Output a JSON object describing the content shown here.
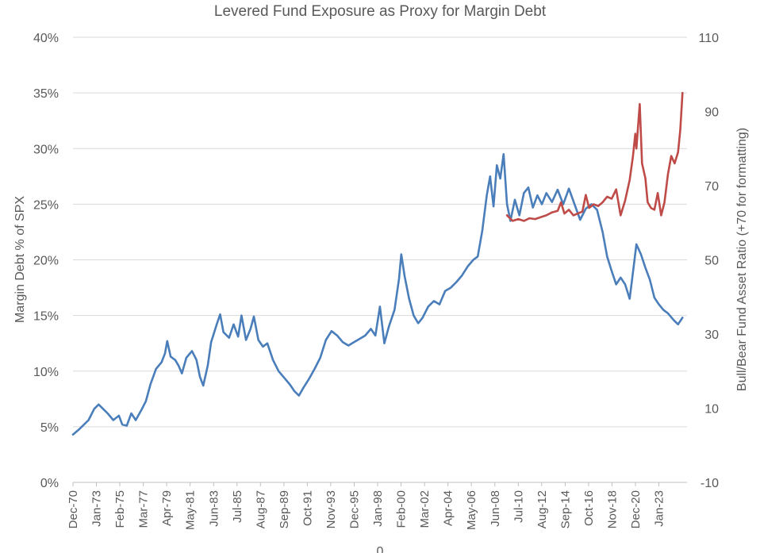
{
  "chart_data": {
    "type": "line",
    "title": "Levered Fund Exposure as Proxy for Margin Debt",
    "xlabel": "0",
    "ylabel": "Margin Debt % of SPX",
    "y2label": "Bull/Bear Fund Asset Ratio (+70 for formatting)",
    "ylim": [
      0,
      40
    ],
    "y2lim": [
      -10,
      110
    ],
    "yticks": [
      "0%",
      "5%",
      "10%",
      "15%",
      "20%",
      "25%",
      "30%",
      "35%",
      "40%"
    ],
    "y2ticks": [
      "-10",
      "10",
      "30",
      "50",
      "70",
      "90",
      "110"
    ],
    "xlim": [
      1970.92,
      2025.5
    ],
    "xticks": [
      {
        "label": "Dec-70",
        "year": 1970.92
      },
      {
        "label": "Jan-73",
        "year": 1973.0
      },
      {
        "label": "Feb-75",
        "year": 1975.08
      },
      {
        "label": "Mar-77",
        "year": 1977.17
      },
      {
        "label": "Apr-79",
        "year": 1979.25
      },
      {
        "label": "May-81",
        "year": 1981.33
      },
      {
        "label": "Jun-83",
        "year": 1983.42
      },
      {
        "label": "Jul-85",
        "year": 1985.5
      },
      {
        "label": "Aug-87",
        "year": 1987.58
      },
      {
        "label": "Sep-89",
        "year": 1989.67
      },
      {
        "label": "Oct-91",
        "year": 1991.75
      },
      {
        "label": "Nov-93",
        "year": 1993.83
      },
      {
        "label": "Dec-95",
        "year": 1995.92
      },
      {
        "label": "Jan-98",
        "year": 1998.0
      },
      {
        "label": "Feb-00",
        "year": 2000.08
      },
      {
        "label": "Mar-02",
        "year": 2002.17
      },
      {
        "label": "Apr-04",
        "year": 2004.25
      },
      {
        "label": "May-06",
        "year": 2006.33
      },
      {
        "label": "Jun-08",
        "year": 2008.42
      },
      {
        "label": "Jul-10",
        "year": 2010.5
      },
      {
        "label": "Aug-12",
        "year": 2012.58
      },
      {
        "label": "Sep-14",
        "year": 2014.67
      },
      {
        "label": "Oct-16",
        "year": 2016.75
      },
      {
        "label": "Nov-18",
        "year": 2018.83
      },
      {
        "label": "Dec-20",
        "year": 2020.92
      },
      {
        "label": "Jan-23",
        "year": 2023.0
      }
    ],
    "grid": true,
    "colors": {
      "margin": "#4a7ebb",
      "bullbear": "#be4b48",
      "grid": "#d9d9d9",
      "text": "#595959"
    },
    "series": [
      {
        "name": "Margin Debt % of SPX",
        "axis": "left",
        "color": "#4a7ebb",
        "points": [
          [
            1970.92,
            4.3
          ],
          [
            1971.5,
            4.8
          ],
          [
            1972.3,
            5.6
          ],
          [
            1972.8,
            6.6
          ],
          [
            1973.2,
            7.0
          ],
          [
            1973.6,
            6.6
          ],
          [
            1974.0,
            6.2
          ],
          [
            1974.5,
            5.6
          ],
          [
            1975.0,
            6.0
          ],
          [
            1975.3,
            5.2
          ],
          [
            1975.7,
            5.1
          ],
          [
            1976.1,
            6.2
          ],
          [
            1976.5,
            5.6
          ],
          [
            1977.0,
            6.5
          ],
          [
            1977.4,
            7.3
          ],
          [
            1977.8,
            8.8
          ],
          [
            1978.3,
            10.2
          ],
          [
            1978.8,
            10.8
          ],
          [
            1979.1,
            11.6
          ],
          [
            1979.3,
            12.7
          ],
          [
            1979.6,
            11.3
          ],
          [
            1980.0,
            11.0
          ],
          [
            1980.3,
            10.5
          ],
          [
            1980.6,
            9.8
          ],
          [
            1981.0,
            11.2
          ],
          [
            1981.5,
            11.8
          ],
          [
            1981.9,
            11.0
          ],
          [
            1982.2,
            9.5
          ],
          [
            1982.5,
            8.7
          ],
          [
            1982.9,
            10.5
          ],
          [
            1983.2,
            12.6
          ],
          [
            1983.7,
            14.2
          ],
          [
            1984.0,
            15.1
          ],
          [
            1984.3,
            13.5
          ],
          [
            1984.8,
            13.0
          ],
          [
            1985.2,
            14.2
          ],
          [
            1985.6,
            13.1
          ],
          [
            1985.9,
            15.0
          ],
          [
            1986.3,
            12.8
          ],
          [
            1986.7,
            13.8
          ],
          [
            1987.0,
            14.9
          ],
          [
            1987.4,
            12.8
          ],
          [
            1987.8,
            12.2
          ],
          [
            1988.2,
            12.5
          ],
          [
            1988.7,
            11.0
          ],
          [
            1989.2,
            10.0
          ],
          [
            1989.7,
            9.4
          ],
          [
            1990.2,
            8.8
          ],
          [
            1990.6,
            8.2
          ],
          [
            1991.0,
            7.8
          ],
          [
            1991.4,
            8.5
          ],
          [
            1991.9,
            9.3
          ],
          [
            1992.4,
            10.2
          ],
          [
            1992.9,
            11.2
          ],
          [
            1993.4,
            12.8
          ],
          [
            1993.9,
            13.6
          ],
          [
            1994.4,
            13.2
          ],
          [
            1994.9,
            12.6
          ],
          [
            1995.4,
            12.3
          ],
          [
            1995.9,
            12.6
          ],
          [
            1996.4,
            12.9
          ],
          [
            1996.9,
            13.2
          ],
          [
            1997.4,
            13.8
          ],
          [
            1997.8,
            13.2
          ],
          [
            1998.2,
            15.8
          ],
          [
            1998.6,
            12.5
          ],
          [
            1999.0,
            14.0
          ],
          [
            1999.5,
            15.5
          ],
          [
            1999.9,
            18.3
          ],
          [
            2000.1,
            20.5
          ],
          [
            2000.4,
            18.5
          ],
          [
            2000.8,
            16.5
          ],
          [
            2001.2,
            15.0
          ],
          [
            2001.6,
            14.3
          ],
          [
            2002.0,
            14.8
          ],
          [
            2002.5,
            15.8
          ],
          [
            2003.0,
            16.3
          ],
          [
            2003.5,
            16.0
          ],
          [
            2004.0,
            17.2
          ],
          [
            2004.5,
            17.5
          ],
          [
            2005.0,
            18.0
          ],
          [
            2005.5,
            18.6
          ],
          [
            2006.0,
            19.4
          ],
          [
            2006.5,
            20.0
          ],
          [
            2006.9,
            20.3
          ],
          [
            2007.3,
            22.6
          ],
          [
            2007.7,
            25.8
          ],
          [
            2008.0,
            27.5
          ],
          [
            2008.3,
            24.8
          ],
          [
            2008.6,
            28.5
          ],
          [
            2008.9,
            27.3
          ],
          [
            2009.2,
            29.5
          ],
          [
            2009.5,
            25.0
          ],
          [
            2009.8,
            23.5
          ],
          [
            2010.2,
            25.4
          ],
          [
            2010.6,
            24.0
          ],
          [
            2011.0,
            26.0
          ],
          [
            2011.4,
            26.5
          ],
          [
            2011.8,
            24.7
          ],
          [
            2012.2,
            25.8
          ],
          [
            2012.6,
            25.0
          ],
          [
            2013.0,
            26.0
          ],
          [
            2013.5,
            25.2
          ],
          [
            2014.0,
            26.3
          ],
          [
            2014.5,
            25.0
          ],
          [
            2015.0,
            26.4
          ],
          [
            2015.5,
            25.0
          ],
          [
            2016.0,
            23.6
          ],
          [
            2016.5,
            24.6
          ],
          [
            2017.0,
            25.0
          ],
          [
            2017.5,
            24.5
          ],
          [
            2018.0,
            22.5
          ],
          [
            2018.4,
            20.3
          ],
          [
            2018.8,
            19.0
          ],
          [
            2019.2,
            17.8
          ],
          [
            2019.6,
            18.4
          ],
          [
            2020.0,
            17.8
          ],
          [
            2020.4,
            16.5
          ],
          [
            2020.8,
            19.7
          ],
          [
            2021.0,
            21.4
          ],
          [
            2021.4,
            20.5
          ],
          [
            2021.8,
            19.3
          ],
          [
            2022.2,
            18.2
          ],
          [
            2022.6,
            16.6
          ],
          [
            2023.0,
            16.0
          ],
          [
            2023.4,
            15.5
          ],
          [
            2023.8,
            15.2
          ],
          [
            2024.3,
            14.6
          ],
          [
            2024.7,
            14.2
          ],
          [
            2025.1,
            14.8
          ]
        ]
      },
      {
        "name": "Bull/Bear Fund Asset Ratio",
        "axis": "right",
        "color": "#be4b48",
        "points": [
          [
            2009.5,
            62.0
          ],
          [
            2010.0,
            60.5
          ],
          [
            2010.5,
            61.0
          ],
          [
            2011.0,
            60.5
          ],
          [
            2011.5,
            61.2
          ],
          [
            2012.0,
            61.0
          ],
          [
            2012.5,
            61.5
          ],
          [
            2013.0,
            62.0
          ],
          [
            2013.5,
            62.8
          ],
          [
            2014.0,
            63.2
          ],
          [
            2014.3,
            65.5
          ],
          [
            2014.6,
            62.5
          ],
          [
            2015.0,
            63.5
          ],
          [
            2015.4,
            62.0
          ],
          [
            2015.8,
            62.5
          ],
          [
            2016.2,
            63.0
          ],
          [
            2016.5,
            67.5
          ],
          [
            2016.8,
            64.0
          ],
          [
            2017.2,
            65.0
          ],
          [
            2017.6,
            64.5
          ],
          [
            2018.0,
            65.5
          ],
          [
            2018.4,
            67.0
          ],
          [
            2018.8,
            66.5
          ],
          [
            2019.2,
            69.0
          ],
          [
            2019.6,
            62.0
          ],
          [
            2020.0,
            66.0
          ],
          [
            2020.4,
            71.5
          ],
          [
            2020.7,
            78.0
          ],
          [
            2020.9,
            84.0
          ],
          [
            2021.0,
            80.0
          ],
          [
            2021.3,
            92.0
          ],
          [
            2021.5,
            76.0
          ],
          [
            2021.8,
            72.0
          ],
          [
            2022.0,
            65.5
          ],
          [
            2022.3,
            64.0
          ],
          [
            2022.6,
            63.5
          ],
          [
            2022.9,
            68.0
          ],
          [
            2023.2,
            62.0
          ],
          [
            2023.5,
            65.5
          ],
          [
            2023.8,
            73.0
          ],
          [
            2024.1,
            78.0
          ],
          [
            2024.4,
            76.0
          ],
          [
            2024.7,
            79.0
          ],
          [
            2024.9,
            85.0
          ],
          [
            2025.1,
            95.0
          ]
        ]
      }
    ]
  }
}
